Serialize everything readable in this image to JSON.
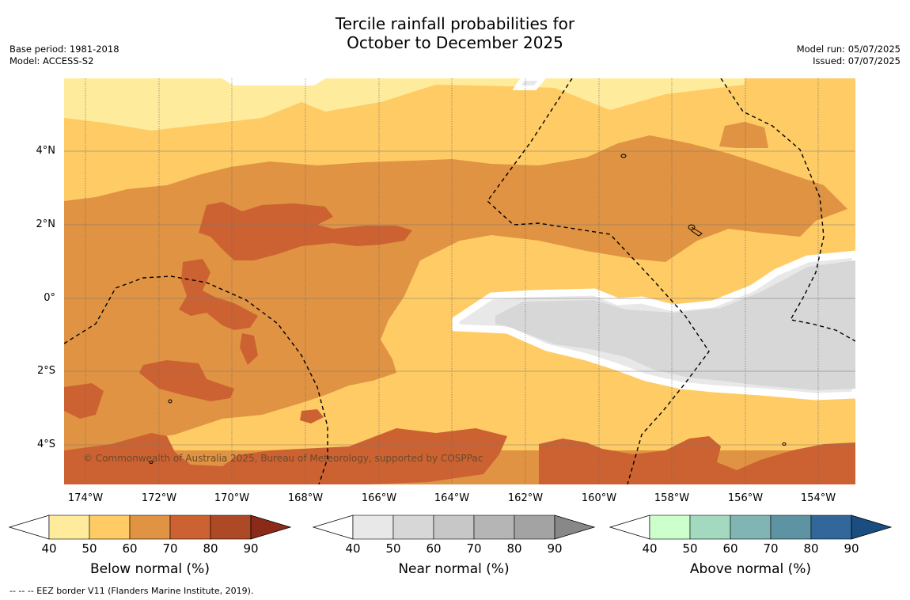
{
  "title_line1": "Tercile rainfall probabilities for",
  "title_line2": "October to December 2025",
  "meta_left": [
    "Base period: 1981-2018",
    "Model: ACCESS-S2"
  ],
  "meta_right": [
    "Model run: 05/07/2025",
    "Issued: 07/07/2025"
  ],
  "copyright": "© Commonwealth of Australia 2025, Bureau of Meteorology, supported by COSPPac",
  "footnote": "-- -- -- EEZ border V11 (Flanders Marine Institute, 2019).",
  "lat_labels": [
    "4°N",
    "2°N",
    "0°",
    "2°S",
    "4°S"
  ],
  "lon_labels": [
    "174°W",
    "172°W",
    "170°W",
    "168°W",
    "166°W",
    "164°W",
    "162°W",
    "160°W",
    "158°W",
    "156°W",
    "154°W"
  ],
  "colorbars": [
    {
      "title": "Below normal (%)",
      "ticks": [
        "40",
        "50",
        "60",
        "70",
        "80",
        "90"
      ],
      "colors": [
        "#ffffff",
        "#ffeb9c",
        "#fecb65",
        "#e09342",
        "#cc6232",
        "#ad4925",
        "#8c2a1a"
      ]
    },
    {
      "title": "Near normal (%)",
      "ticks": [
        "40",
        "50",
        "60",
        "70",
        "80",
        "90"
      ],
      "colors": [
        "#ffffff",
        "#e8e8e8",
        "#d7d7d7",
        "#c7c7c7",
        "#b5b5b5",
        "#a3a3a3",
        "#888888"
      ]
    },
    {
      "title": "Above normal (%)",
      "ticks": [
        "40",
        "50",
        "60",
        "70",
        "80",
        "90"
      ],
      "colors": [
        "#ffffff",
        "#ccffcc",
        "#a3d9bf",
        "#80b5b3",
        "#5e93a3",
        "#336699",
        "#1a4d80"
      ]
    }
  ],
  "colors": {
    "below_40_50": "#ffeb9c",
    "below_50_60": "#fecb65",
    "below_60_70": "#e09342",
    "below_70_80": "#cc6232",
    "near_50_60": "#d7d7d7",
    "near_40_50": "#e8e8e8"
  }
}
